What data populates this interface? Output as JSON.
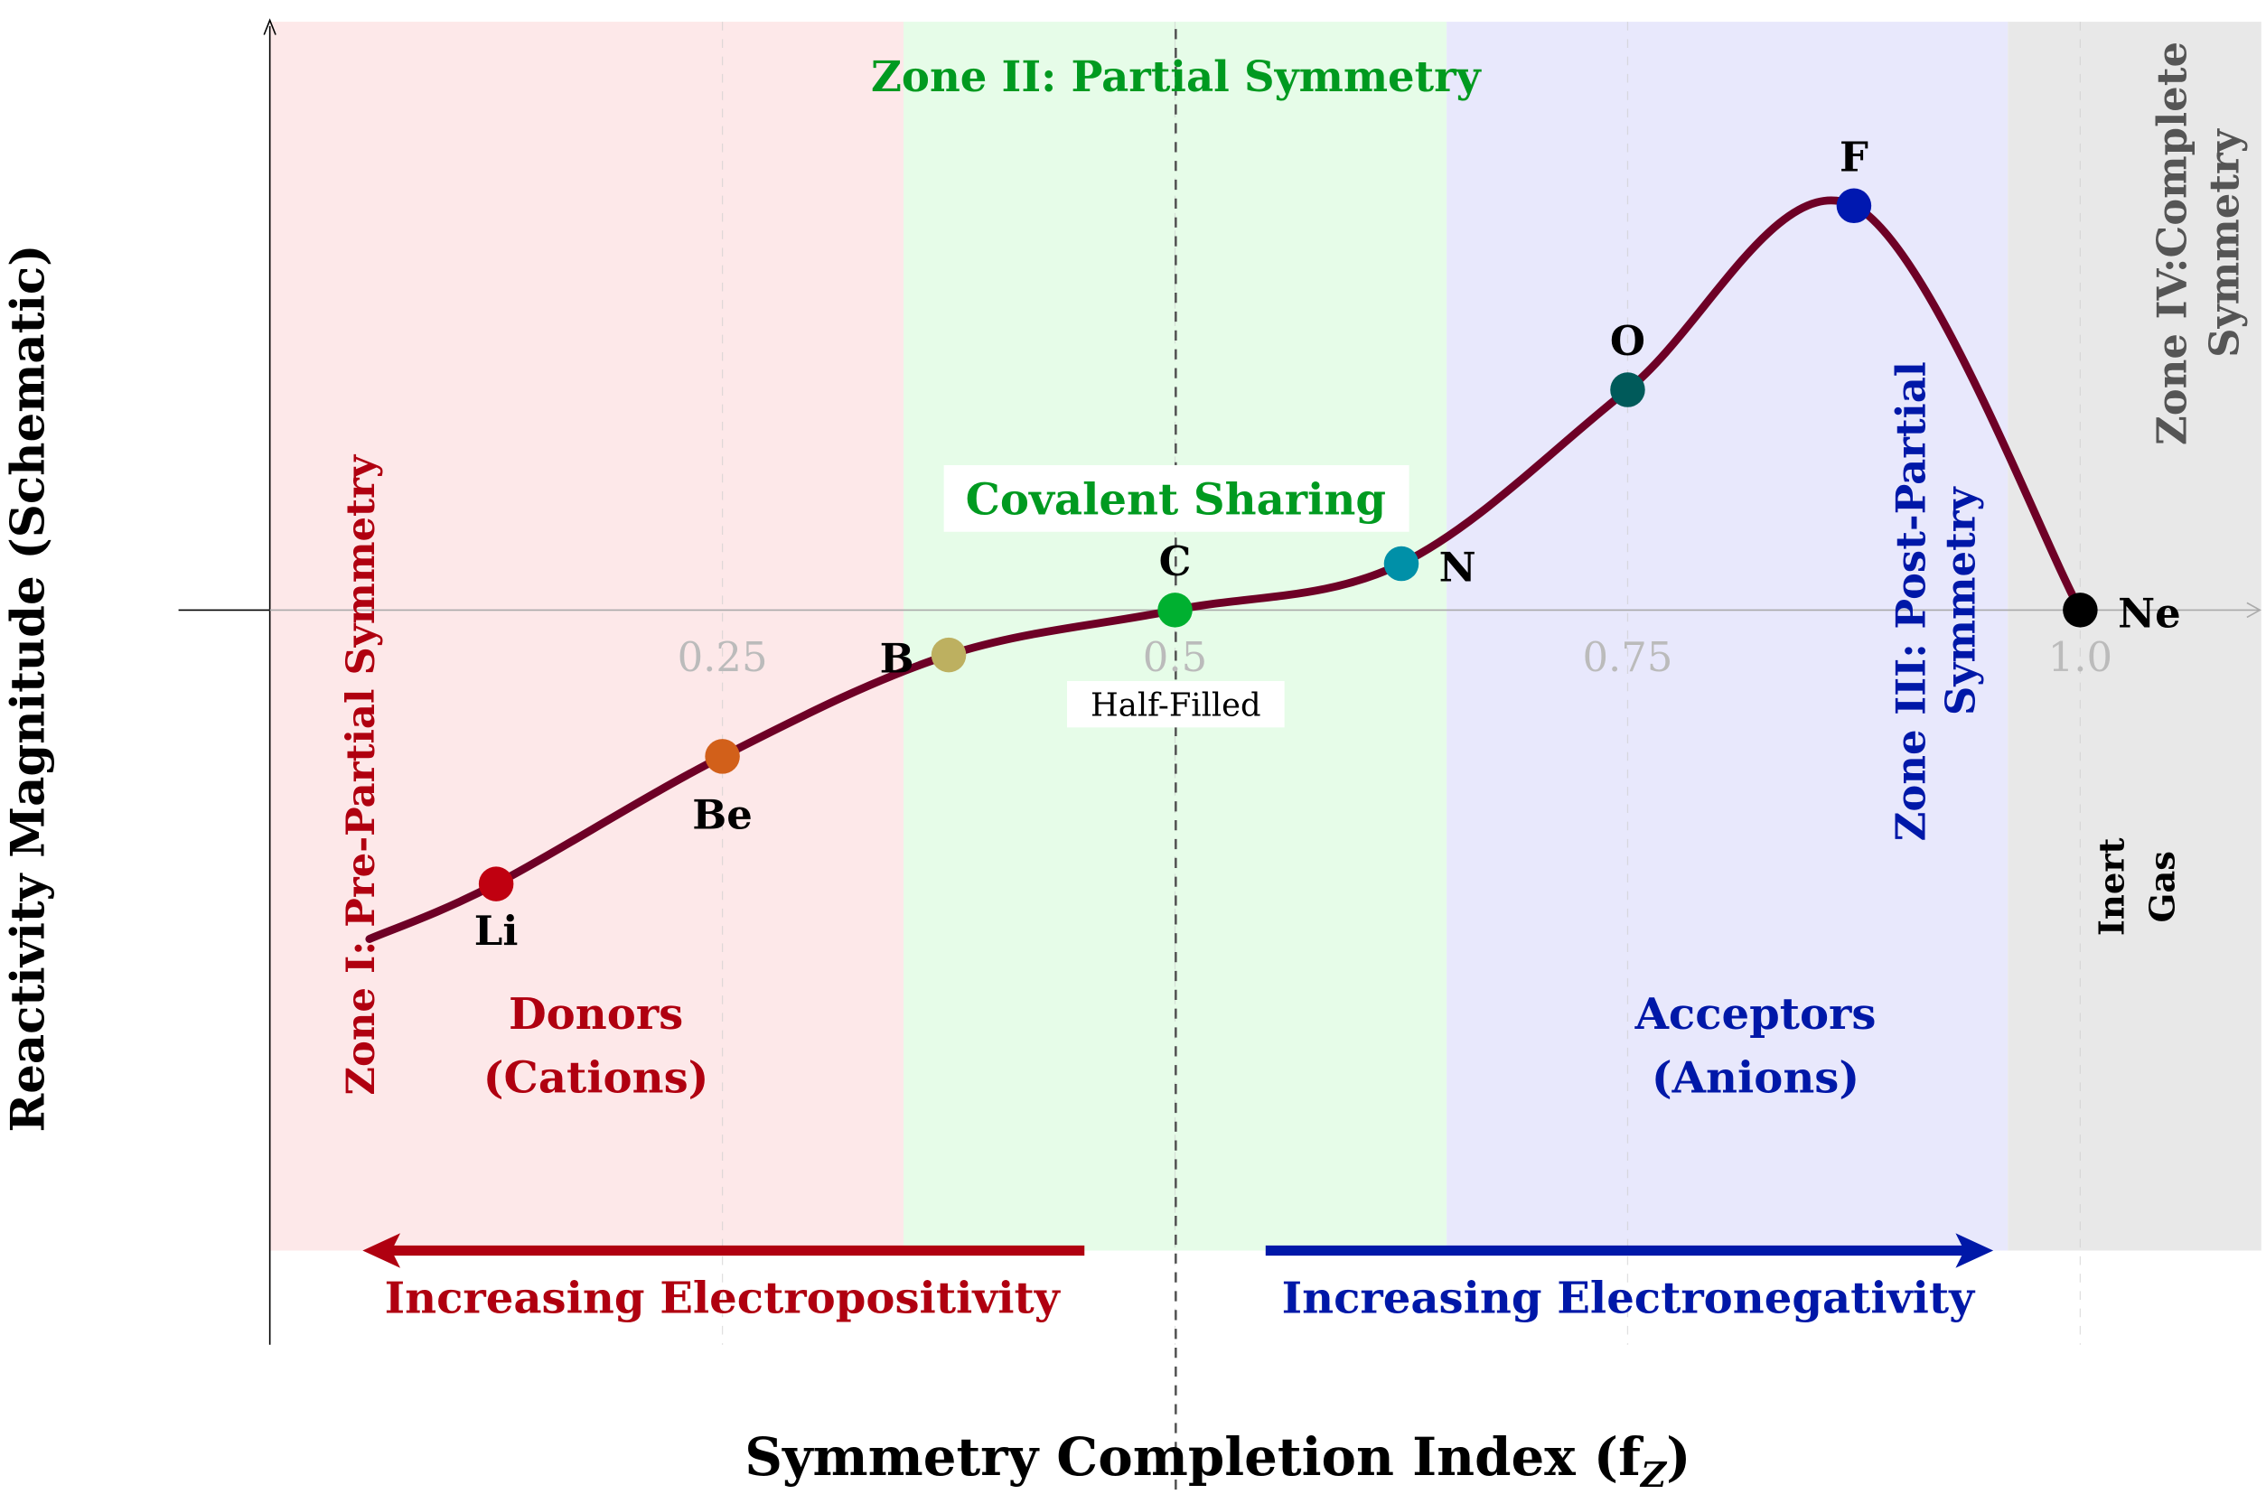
{
  "chart_data": {
    "type": "line",
    "title": "",
    "xlabel": "Symmetry Completion Index (f",
    "xlabel_sub": "Z",
    "xlabel_close": ")",
    "ylabel": "Reactivity Magnitude (Schematic)",
    "xlim": [
      0,
      1.1
    ],
    "ylim": [
      -3.5,
      4.0
    ],
    "xticks": [
      {
        "value": 0.25,
        "label": "0.25"
      },
      {
        "value": 0.5,
        "label": "0.5"
      },
      {
        "value": 0.75,
        "label": "0.75"
      },
      {
        "value": 1.0,
        "label": "1.0"
      }
    ],
    "curve_start": {
      "x": 0.055,
      "y": -2.27
    },
    "points": [
      {
        "label": "Li",
        "x": 0.125,
        "y": -1.89,
        "color": "#c00010"
      },
      {
        "label": "Be",
        "x": 0.25,
        "y": -1.01,
        "color": "#d2601a"
      },
      {
        "label": "B",
        "x": 0.375,
        "y": -0.31,
        "color": "#bdb060"
      },
      {
        "label": "C",
        "x": 0.5,
        "y": 0.0,
        "color": "#00b030"
      },
      {
        "label": "N",
        "x": 0.625,
        "y": 0.32,
        "color": "#0090a8"
      },
      {
        "label": "O",
        "x": 0.75,
        "y": 1.52,
        "color": "#005a5a"
      },
      {
        "label": "F",
        "x": 0.875,
        "y": 2.79,
        "color": "#0018b0"
      },
      {
        "label": "Ne",
        "x": 1.0,
        "y": 0.0,
        "color": "#000000"
      }
    ],
    "curve_color": "#6e0026",
    "zones": [
      {
        "name": "Zone I: Pre-Partial Symmetry",
        "from": 0,
        "to": 0.35,
        "fill": "#fde8e9",
        "text_color": "#b00010"
      },
      {
        "name": "Zone II: Partial Symmetry",
        "from": 0.35,
        "to": 0.65,
        "fill": "#e6fce8",
        "text_color": "#009a20"
      },
      {
        "name_line1": "Zone III: Post-Partial",
        "name_line2": "Symmetry",
        "from": 0.65,
        "to": 0.96,
        "fill": "#e8e8fc",
        "text_color": "#0018a8"
      },
      {
        "name_line1": "Zone IV:Complete",
        "name_line2": "Symmetry",
        "from": 0.96,
        "to": 1.1,
        "fill": "#e8e8e8",
        "text_color": "#555555"
      }
    ],
    "annotations": {
      "half_filled": "Half-Filled",
      "covalent": "Covalent Sharing",
      "donors_1": "Donors",
      "donors_2": "(Cations)",
      "acceptors_1": "Acceptors",
      "acceptors_2": "(Anions)",
      "inert_1": "Inert",
      "inert_2": "Gas",
      "electropositivity": "Increasing Electropositivity",
      "electronegativity": "Increasing Electronegativity"
    }
  }
}
